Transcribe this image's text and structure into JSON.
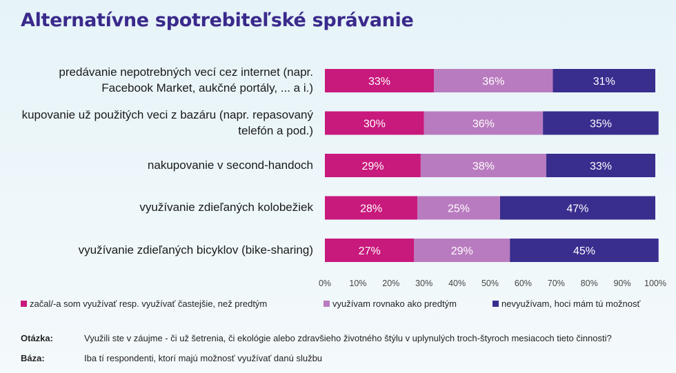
{
  "title": "Alternatívne spotrebiteľské správanie",
  "chart_data": {
    "type": "bar",
    "orientation": "horizontal",
    "stacked": true,
    "categories": [
      "predávanie nepotrebných vecí cez internet (napr. Facebook Market, aukčné portály, ... a i.)",
      "kupovanie už použitých veci z bazáru (napr. repasovaný telefón a pod.)",
      "nakupovanie v second-handoch",
      "využívanie zdieľaných kolobežiek",
      "využívanie zdieľaných bicyklov (bike-sharing)"
    ],
    "category_lines": [
      [
        "predávanie nepotrebných vecí cez internet (napr.",
        "Facebook Market, aukčné portály, ... a i.)"
      ],
      [
        "kupovanie už použitých veci z bazáru (napr. repasovaný",
        "telefón a pod.)"
      ],
      [
        "nakupovanie v second-handoch"
      ],
      [
        "využívanie zdieľaných kolobežiek"
      ],
      [
        "využívanie zdieľaných bicyklov (bike-sharing)"
      ]
    ],
    "series": [
      {
        "name": "začal/-a som využívať resp. využívať častejšie, než predtým",
        "color": "#c8197c",
        "values": [
          33,
          30,
          29,
          28,
          27
        ]
      },
      {
        "name": "využívam rovnako ako predtým",
        "color": "#b97bbf",
        "values": [
          36,
          36,
          38,
          25,
          29
        ]
      },
      {
        "name": "nevyužívam, hoci mám tú možnosť",
        "color": "#392d8e",
        "values": [
          31,
          35,
          33,
          47,
          45
        ]
      }
    ],
    "data_labels": [
      [
        "33%",
        "36%",
        "31%"
      ],
      [
        "30%",
        "36%",
        "35%"
      ],
      [
        "29%",
        "38%",
        "33%"
      ],
      [
        "28%",
        "25%",
        "47%"
      ],
      [
        "27%",
        "29%",
        "45%"
      ]
    ],
    "xlim": [
      0,
      100
    ],
    "x_ticks": [
      "0%",
      "10%",
      "20%",
      "30%",
      "40%",
      "50%",
      "60%",
      "70%",
      "80%",
      "90%",
      "100%"
    ],
    "legend_position": "bottom",
    "grid": false
  },
  "footer": {
    "question_label": "Otázka:",
    "question_text": "Využili ste v záujme - či už šetrenia, či ekológie alebo zdravšieho životného štýlu v uplynulých troch-štyroch mesiacoch tieto činnosti?",
    "base_label": "Báza:",
    "base_text": "Iba tí respondenti, ktorí majú možnosť využívať danú službu"
  }
}
